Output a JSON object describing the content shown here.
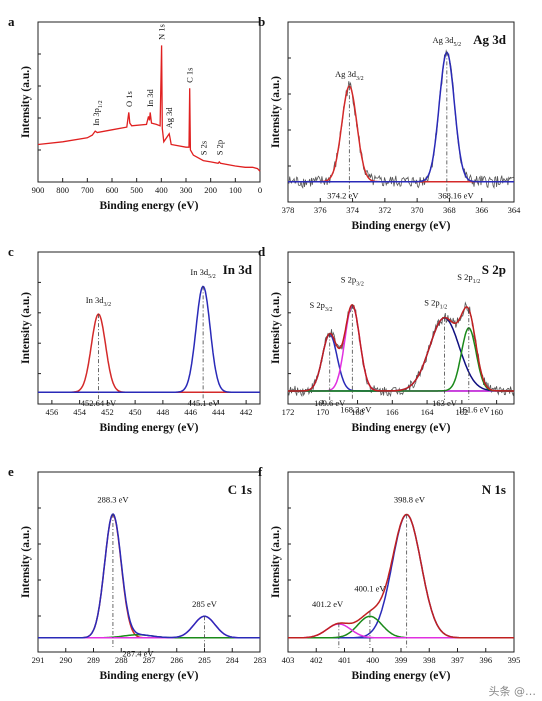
{
  "watermark": "头条 @…",
  "chart_data": [
    {
      "id": "a",
      "type": "line",
      "panel_label": "a",
      "title": "",
      "xlabel": "Binding energy (eV)",
      "ylabel": "Intensity (a.u.)",
      "xlim": [
        900,
        0
      ],
      "ylim": [
        0,
        100
      ],
      "x_reversed": true,
      "xticks": [
        900,
        800,
        700,
        600,
        500,
        400,
        300,
        200,
        100,
        0
      ],
      "series": [
        {
          "color": "#e02020",
          "kind": "spectrum",
          "x": [
            900,
            800,
            700,
            680,
            668,
            660,
            600,
            540,
            532,
            528,
            520,
            460,
            452,
            448,
            445,
            440,
            420,
            405,
            399,
            396,
            390,
            368,
            365,
            360,
            300,
            288,
            285,
            282,
            270,
            230,
            200,
            170,
            165,
            160,
            100,
            60,
            30,
            10,
            0
          ],
          "y": [
            22,
            24,
            27,
            29,
            32,
            31,
            33,
            35,
            46,
            38,
            36,
            37,
            43,
            40,
            46,
            38,
            37,
            36,
            96,
            34,
            24,
            30,
            27,
            22,
            20,
            20,
            64,
            18,
            14,
            10,
            9,
            8,
            9,
            8,
            6,
            5,
            5,
            4,
            2
          ]
        }
      ],
      "annotations": [
        {
          "text": "In 3p1/2",
          "x": 665,
          "y": 36
        },
        {
          "text": "O 1s",
          "x": 532,
          "y": 50
        },
        {
          "text": "In 3d",
          "x": 445,
          "y": 50
        },
        {
          "text": "N 1s",
          "x": 399,
          "y": 100
        },
        {
          "text": "Ag 3d",
          "x": 368,
          "y": 34
        },
        {
          "text": "C 1s",
          "x": 285,
          "y": 68
        },
        {
          "text": "S 2s",
          "x": 230,
          "y": 14
        },
        {
          "text": "S 2p",
          "x": 165,
          "y": 14
        }
      ]
    },
    {
      "id": "b",
      "type": "line",
      "panel_label": "b",
      "title": "Ag 3d",
      "xlabel": "Binding energy (eV)",
      "ylabel": "Intensity (a.u.)",
      "xlim": [
        378,
        364
      ],
      "ylim": [
        0,
        100
      ],
      "x_reversed": true,
      "xticks": [
        378,
        376,
        374,
        372,
        370,
        368,
        366,
        364
      ],
      "peaks": [
        {
          "center": 374.2,
          "height": 62,
          "fwhm": 1.1,
          "color": "#d42a2a"
        },
        {
          "center": 368.16,
          "height": 84,
          "fwhm": 1.1,
          "color": "#2a2ab8"
        }
      ],
      "baseline": 8,
      "noise": true,
      "markers": [
        374.2,
        368.16
      ],
      "annotations": [
        {
          "text": "Ag 3d3/2",
          "x": 374.2,
          "y": 76
        },
        {
          "text": "Ag 3d5/2",
          "x": 368.16,
          "y": 98
        },
        {
          "text": "374.2 eV",
          "x": 374.6,
          "y": -3
        },
        {
          "text": "368.16 eV",
          "x": 367.6,
          "y": -3
        }
      ]
    },
    {
      "id": "c",
      "type": "line",
      "panel_label": "c",
      "title": "In 3d",
      "xlabel": "Binding energy (eV)",
      "ylabel": "Intensity (a.u.)",
      "xlim": [
        457,
        441
      ],
      "ylim": [
        0,
        100
      ],
      "x_reversed": true,
      "xticks": [
        456,
        454,
        452,
        450,
        448,
        446,
        444,
        442
      ],
      "peaks": [
        {
          "center": 452.64,
          "height": 62,
          "fwhm": 1.2,
          "color": "#d42a2a"
        },
        {
          "center": 445.1,
          "height": 84,
          "fwhm": 1.2,
          "color": "#2a2ab8"
        }
      ],
      "baseline": 3,
      "noise": false,
      "markers": [
        452.64,
        445.1
      ],
      "annotations": [
        {
          "text": "In 3d3/2",
          "x": 452.64,
          "y": 74
        },
        {
          "text": "In 3d5/2",
          "x": 445.1,
          "y": 96
        },
        {
          "text": "452.64 eV",
          "x": 452.64,
          "y": -8
        },
        {
          "text": "445.1 eV",
          "x": 445.1,
          "y": -8
        }
      ]
    },
    {
      "id": "d",
      "type": "line",
      "panel_label": "d",
      "title": "S 2p",
      "xlabel": "Binding energy (eV)",
      "ylabel": "Intensity (a.u.)",
      "xlim": [
        172,
        159
      ],
      "ylim": [
        0,
        100
      ],
      "x_reversed": true,
      "xticks": [
        172,
        170,
        168,
        166,
        164,
        162,
        160
      ],
      "peaks": [
        {
          "center": 169.6,
          "height": 45,
          "fwhm": 1.0,
          "color": "#2a2ab8"
        },
        {
          "center": 168.3,
          "height": 68,
          "fwhm": 1.0,
          "color": "#e030e0"
        },
        {
          "center": 163.0,
          "height": 58,
          "fwhm": 2.0,
          "color": "#101080"
        },
        {
          "center": 161.6,
          "height": 50,
          "fwhm": 1.0,
          "color": "#1a8a1a"
        }
      ],
      "envelope_color": "#c02020",
      "baseline": 4,
      "noise": true,
      "markers": [
        169.6,
        168.3,
        163.0,
        161.6
      ],
      "annotations": [
        {
          "text": "S 2p3/2",
          "x": 170.1,
          "y": 70
        },
        {
          "text": "S 2p3/2",
          "x": 168.3,
          "y": 90
        },
        {
          "text": "S 2p1/2",
          "x": 163.5,
          "y": 72
        },
        {
          "text": "S 2p1/2",
          "x": 161.6,
          "y": 92
        },
        {
          "text": "169.6 eV",
          "x": 169.6,
          "y": -8
        },
        {
          "text": "168.3 eV",
          "x": 168.1,
          "y": -13
        },
        {
          "text": "163 eV",
          "x": 163.0,
          "y": -8
        },
        {
          "text": "161.6 eV",
          "x": 161.3,
          "y": -13
        }
      ]
    },
    {
      "id": "e",
      "type": "line",
      "panel_label": "e",
      "title": "C 1s",
      "xlabel": "Binding energy (eV)",
      "ylabel": "Intensity (a.u.)",
      "xlim": [
        291,
        283
      ],
      "ylim": [
        0,
        100
      ],
      "x_reversed": true,
      "xticks": [
        291,
        290,
        289,
        288,
        287,
        286,
        285,
        284,
        283
      ],
      "peaks": [
        {
          "center": 288.3,
          "height": 80,
          "fwhm": 0.7,
          "color": "#d42a2a"
        },
        {
          "center": 287.4,
          "height": 2,
          "fwhm": 1.2,
          "color": "#1a8a1a"
        },
        {
          "center": 285.0,
          "height": 14,
          "fwhm": 0.9,
          "color": "#e030e0"
        }
      ],
      "envelope_color": "#2a2ab8",
      "baseline": 4,
      "noise": false,
      "markers": [
        288.3,
        285.0
      ],
      "annotations": [
        {
          "text": "288.3 eV",
          "x": 288.3,
          "y": 92
        },
        {
          "text": "285 eV",
          "x": 285.0,
          "y": 24
        },
        {
          "text": "287.4 eV",
          "x": 287.4,
          "y": -8
        }
      ]
    },
    {
      "id": "f",
      "type": "line",
      "panel_label": "f",
      "title": "N 1s",
      "xlabel": "Binding energy (eV)",
      "ylabel": "Intensity (a.u.)",
      "xlim": [
        403,
        395
      ],
      "ylim": [
        0,
        100
      ],
      "x_reversed": true,
      "xticks": [
        403,
        402,
        401,
        400,
        399,
        398,
        397,
        396,
        395
      ],
      "peaks": [
        {
          "center": 398.8,
          "height": 80,
          "fwhm": 1.2,
          "color": "#2a2ab8"
        },
        {
          "center": 400.1,
          "height": 14,
          "fwhm": 1.0,
          "color": "#1a8a1a"
        },
        {
          "center": 401.2,
          "height": 9,
          "fwhm": 1.0,
          "color": "#e030e0"
        }
      ],
      "envelope_color": "#c02020",
      "baseline": 4,
      "noise": false,
      "markers": [
        398.8,
        400.1,
        401.2
      ],
      "annotations": [
        {
          "text": "398.8 eV",
          "x": 398.7,
          "y": 92
        },
        {
          "text": "400.1 eV",
          "x": 400.1,
          "y": 34
        },
        {
          "text": "401.2 eV",
          "x": 401.6,
          "y": 24
        }
      ]
    }
  ]
}
